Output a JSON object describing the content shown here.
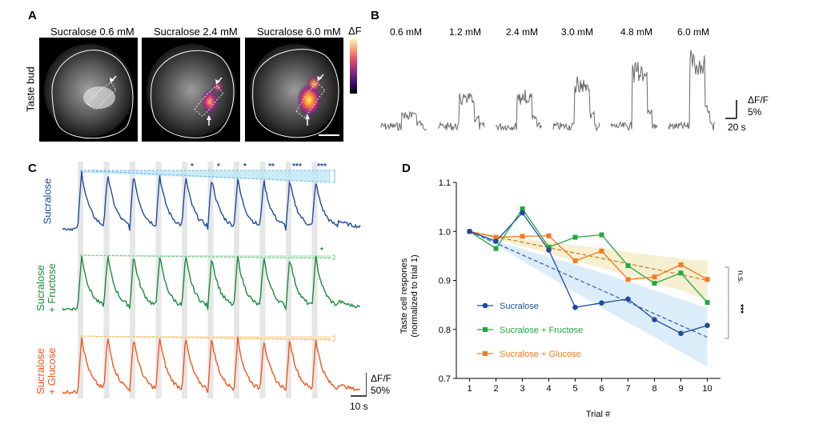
{
  "panel_letters": {
    "a": "A",
    "b": "B",
    "c": "C",
    "d": "D"
  },
  "panelA": {
    "titles": [
      "Sucralose 0.6 mM",
      "Sucralose 2.4 mM",
      "Sucralose 6.0 mM"
    ],
    "side_label": "Taste bud",
    "colorbar_label": "ΔF"
  },
  "panelB": {
    "concentrations": [
      "0.6 mM",
      "1.2 mM",
      "2.4 mM",
      "3.0 mM",
      "4.8 mM",
      "6.0 mM"
    ],
    "scale_y": "ΔF/F",
    "scale_y_value": "5%",
    "scale_x": "20 s"
  },
  "panelC": {
    "rows": [
      {
        "label": "Sucralose",
        "color": "#1f4aa0"
      },
      {
        "label": "Sucralose\n+ Fructose",
        "color": "#1a8a3a"
      },
      {
        "label": "Sucralose\n+ Glucose",
        "color": "#f0561d"
      }
    ],
    "sig_sucralose": [
      "*",
      "*",
      "*",
      "**",
      "***",
      "***"
    ],
    "sig_fructose": [
      "*"
    ],
    "scale_y": "ΔF/F",
    "scale_y_value": "50%",
    "scale_x": "10 s"
  },
  "colors": {
    "sucralose": "#1f4aa0",
    "fructose": "#1fa83e",
    "glucose": "#f57a1e"
  },
  "chart_data": {
    "type": "line",
    "x": [
      1,
      2,
      3,
      4,
      5,
      6,
      7,
      8,
      9,
      10
    ],
    "xlabel": "Trial #",
    "ylabel": "Taste cell respones (normalized to trial 1)",
    "ylim": [
      0.7,
      1.1
    ],
    "yticks": [
      "0.7",
      "0.8",
      "0.9",
      "1.0",
      "1.1"
    ],
    "xticks": [
      "1",
      "2",
      "3",
      "4",
      "5",
      "6",
      "7",
      "8",
      "9",
      "10"
    ],
    "series": [
      {
        "name": "Sucralose",
        "color": "#1f4aa0",
        "marker": "circle",
        "values": [
          1.0,
          0.98,
          1.038,
          0.962,
          0.845,
          0.854,
          0.862,
          0.82,
          0.792,
          0.808
        ],
        "fit": [
          1.0,
          0.976,
          0.952,
          0.928,
          0.904,
          0.88,
          0.856,
          0.832,
          0.808,
          0.784
        ]
      },
      {
        "name": "Sucralose + Fructose",
        "color": "#1fa83e",
        "marker": "square",
        "values": [
          1.0,
          0.965,
          1.046,
          0.968,
          0.988,
          0.993,
          0.93,
          0.894,
          0.915,
          0.855
        ],
        "fit": [
          1.0,
          0.989,
          0.978,
          0.967,
          0.956,
          0.945,
          0.934,
          0.923,
          0.912,
          0.9
        ]
      },
      {
        "name": "Sucralose + Glucose",
        "color": "#f57a1e",
        "marker": "square",
        "values": [
          1.0,
          0.988,
          0.99,
          0.991,
          0.94,
          0.96,
          0.902,
          0.907,
          0.932,
          0.902
        ],
        "fit": [
          1.0,
          0.989,
          0.978,
          0.967,
          0.956,
          0.945,
          0.934,
          0.923,
          0.912,
          0.9
        ]
      }
    ],
    "annotations": [
      "n.s.",
      "***"
    ]
  }
}
